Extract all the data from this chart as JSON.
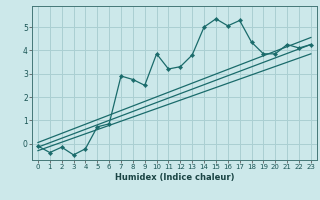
{
  "title": "",
  "xlabel": "Humidex (Indice chaleur)",
  "bg_color": "#cce8ea",
  "grid_color": "#aacfd2",
  "line_color": "#1a6b6b",
  "xlim": [
    -0.5,
    23.5
  ],
  "ylim": [
    -0.7,
    5.9
  ],
  "xticks": [
    0,
    1,
    2,
    3,
    4,
    5,
    6,
    7,
    8,
    9,
    10,
    11,
    12,
    13,
    14,
    15,
    16,
    17,
    18,
    19,
    20,
    21,
    22,
    23
  ],
  "yticks": [
    0,
    1,
    2,
    3,
    4,
    5
  ],
  "main_x": [
    0,
    1,
    2,
    3,
    4,
    5,
    6,
    7,
    8,
    9,
    10,
    11,
    12,
    13,
    14,
    15,
    16,
    17,
    18,
    19,
    20,
    21,
    22,
    23
  ],
  "main_y": [
    -0.1,
    -0.38,
    -0.15,
    -0.48,
    -0.22,
    0.72,
    0.85,
    2.9,
    2.75,
    2.5,
    3.85,
    3.2,
    3.3,
    3.8,
    5.0,
    5.35,
    5.05,
    5.28,
    4.35,
    3.85,
    3.85,
    4.25,
    4.1,
    4.25
  ],
  "line1_x": [
    0,
    23
  ],
  "line1_y": [
    -0.15,
    4.25
  ],
  "line2_x": [
    0,
    23
  ],
  "line2_y": [
    0.05,
    4.55
  ],
  "line3_x": [
    0,
    23
  ],
  "line3_y": [
    -0.3,
    3.85
  ]
}
